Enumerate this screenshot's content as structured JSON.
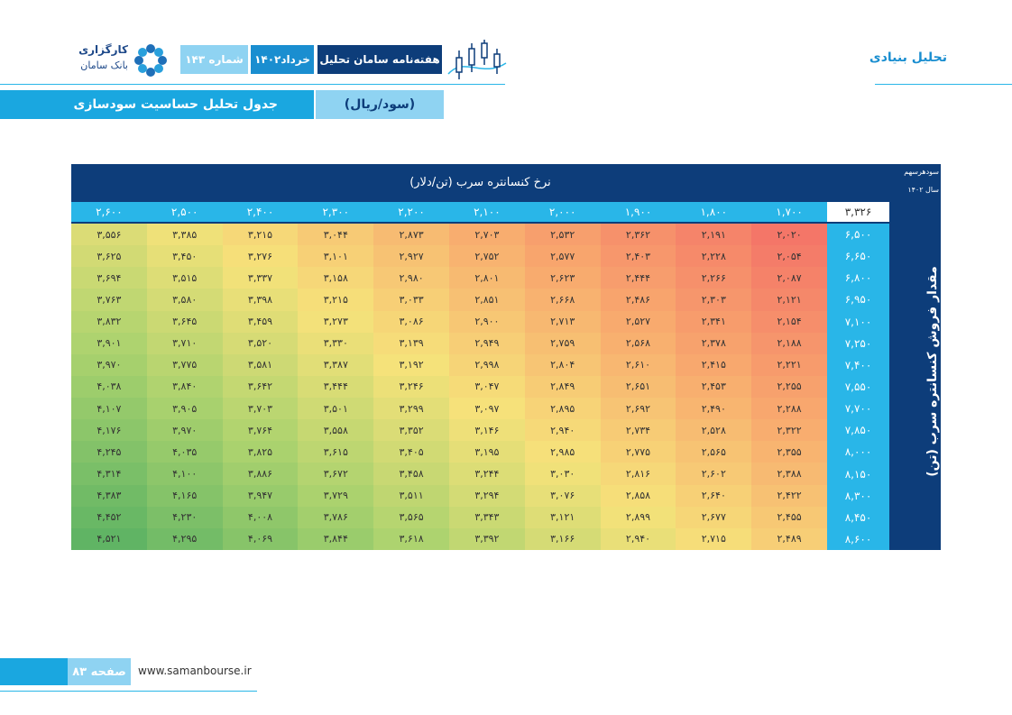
{
  "header": {
    "section": "تحلیل بنیادی",
    "logo_line1": "کارگزاری",
    "logo_line2": "بانک سامان",
    "issue": "شماره ۱۴۳",
    "date": "خرداد۱۴۰۲",
    "publication": "هفته‌نامه سامان تحلیل"
  },
  "banner": {
    "unit": "(سود/ریال)",
    "title": "جدول تحلیل حساسیت سودسازی"
  },
  "table": {
    "column_title": "نرخ کنسانتره سرب (تن/دلار)",
    "corner_title": "سودهرسهم",
    "corner_subtitle": "سال ۱۴۰۲",
    "corner_value": "۳,۳۲۶",
    "row_title": "مقدار فروش کنسانتره سرب (تن)",
    "columns": [
      "۱,۷۰۰",
      "۱,۸۰۰",
      "۱,۹۰۰",
      "۲,۰۰۰",
      "۲,۱۰۰",
      "۲,۲۰۰",
      "۲,۳۰۰",
      "۲,۴۰۰",
      "۲,۵۰۰",
      "۲,۶۰۰"
    ],
    "rows": [
      {
        "label": "۶,۵۰۰",
        "cells": [
          "۲,۰۲۰",
          "۲,۱۹۱",
          "۲,۳۶۲",
          "۲,۵۳۲",
          "۲,۷۰۳",
          "۲,۸۷۳",
          "۳,۰۴۴",
          "۳,۲۱۵",
          "۳,۳۸۵",
          "۳,۵۵۶"
        ]
      },
      {
        "label": "۶,۶۵۰",
        "cells": [
          "۲,۰۵۴",
          "۲,۲۲۸",
          "۲,۴۰۳",
          "۲,۵۷۷",
          "۲,۷۵۲",
          "۲,۹۲۷",
          "۳,۱۰۱",
          "۳,۲۷۶",
          "۳,۴۵۰",
          "۳,۶۲۵"
        ]
      },
      {
        "label": "۶,۸۰۰",
        "cells": [
          "۲,۰۸۷",
          "۲,۲۶۶",
          "۲,۴۴۴",
          "۲,۶۲۳",
          "۲,۸۰۱",
          "۲,۹۸۰",
          "۳,۱۵۸",
          "۳,۳۳۷",
          "۳,۵۱۵",
          "۳,۶۹۴"
        ]
      },
      {
        "label": "۶,۹۵۰",
        "cells": [
          "۲,۱۲۱",
          "۲,۳۰۳",
          "۲,۴۸۶",
          "۲,۶۶۸",
          "۲,۸۵۱",
          "۳,۰۳۳",
          "۳,۲۱۵",
          "۳,۳۹۸",
          "۳,۵۸۰",
          "۳,۷۶۳"
        ]
      },
      {
        "label": "۷,۱۰۰",
        "cells": [
          "۲,۱۵۴",
          "۲,۳۴۱",
          "۲,۵۲۷",
          "۲,۷۱۳",
          "۲,۹۰۰",
          "۳,۰۸۶",
          "۳,۲۷۳",
          "۳,۴۵۹",
          "۳,۶۴۵",
          "۳,۸۳۲"
        ]
      },
      {
        "label": "۷,۲۵۰",
        "cells": [
          "۲,۱۸۸",
          "۲,۳۷۸",
          "۲,۵۶۸",
          "۲,۷۵۹",
          "۲,۹۴۹",
          "۳,۱۳۹",
          "۳,۳۳۰",
          "۳,۵۲۰",
          "۳,۷۱۰",
          "۳,۹۰۱"
        ]
      },
      {
        "label": "۷,۴۰۰",
        "cells": [
          "۲,۲۲۱",
          "۲,۴۱۵",
          "۲,۶۱۰",
          "۲,۸۰۴",
          "۲,۹۹۸",
          "۳,۱۹۲",
          "۳,۳۸۷",
          "۳,۵۸۱",
          "۳,۷۷۵",
          "۳,۹۷۰"
        ]
      },
      {
        "label": "۷,۵۵۰",
        "cells": [
          "۲,۲۵۵",
          "۲,۴۵۳",
          "۲,۶۵۱",
          "۲,۸۴۹",
          "۳,۰۴۷",
          "۳,۲۴۶",
          "۳,۴۴۴",
          "۳,۶۴۲",
          "۳,۸۴۰",
          "۴,۰۳۸"
        ]
      },
      {
        "label": "۷,۷۰۰",
        "cells": [
          "۲,۲۸۸",
          "۲,۴۹۰",
          "۲,۶۹۲",
          "۲,۸۹۵",
          "۳,۰۹۷",
          "۳,۲۹۹",
          "۳,۵۰۱",
          "۳,۷۰۳",
          "۳,۹۰۵",
          "۴,۱۰۷"
        ]
      },
      {
        "label": "۷,۸۵۰",
        "cells": [
          "۲,۳۲۲",
          "۲,۵۲۸",
          "۲,۷۳۴",
          "۲,۹۴۰",
          "۳,۱۴۶",
          "۳,۳۵۲",
          "۳,۵۵۸",
          "۳,۷۶۴",
          "۳,۹۷۰",
          "۴,۱۷۶"
        ]
      },
      {
        "label": "۸,۰۰۰",
        "cells": [
          "۲,۳۵۵",
          "۲,۵۶۵",
          "۲,۷۷۵",
          "۲,۹۸۵",
          "۳,۱۹۵",
          "۳,۴۰۵",
          "۳,۶۱۵",
          "۳,۸۲۵",
          "۴,۰۳۵",
          "۴,۲۴۵"
        ]
      },
      {
        "label": "۸,۱۵۰",
        "cells": [
          "۲,۳۸۸",
          "۲,۶۰۲",
          "۲,۸۱۶",
          "۳,۰۳۰",
          "۳,۲۴۴",
          "۳,۴۵۸",
          "۳,۶۷۲",
          "۳,۸۸۶",
          "۴,۱۰۰",
          "۴,۳۱۴"
        ]
      },
      {
        "label": "۸,۳۰۰",
        "cells": [
          "۲,۴۲۲",
          "۲,۶۴۰",
          "۲,۸۵۸",
          "۳,۰۷۶",
          "۳,۲۹۴",
          "۳,۵۱۱",
          "۳,۷۲۹",
          "۳,۹۴۷",
          "۴,۱۶۵",
          "۴,۳۸۳"
        ]
      },
      {
        "label": "۸,۴۵۰",
        "cells": [
          "۲,۴۵۵",
          "۲,۶۷۷",
          "۲,۸۹۹",
          "۳,۱۲۱",
          "۳,۳۴۳",
          "۳,۵۶۵",
          "۳,۷۸۶",
          "۴,۰۰۸",
          "۴,۲۳۰",
          "۴,۴۵۲"
        ]
      },
      {
        "label": "۸,۶۰۰",
        "cells": [
          "۲,۴۸۹",
          "۲,۷۱۵",
          "۲,۹۴۰",
          "۳,۱۶۶",
          "۳,۳۹۲",
          "۳,۶۱۸",
          "۳,۸۴۴",
          "۴,۰۶۹",
          "۴,۲۹۵",
          "۴,۵۲۱"
        ]
      }
    ]
  },
  "footer": {
    "website": "www.samanbourse.ir",
    "page": "صفحه ۸۳"
  }
}
